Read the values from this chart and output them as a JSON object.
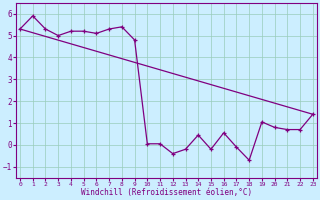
{
  "xlabel": "Windchill (Refroidissement éolien,°C)",
  "bg_color": "#cceeff",
  "line_color": "#800080",
  "xlim": [
    -0.3,
    23.3
  ],
  "ylim": [
    -1.5,
    6.5
  ],
  "yticks": [
    -1,
    0,
    1,
    2,
    3,
    4,
    5,
    6
  ],
  "xticks": [
    0,
    1,
    2,
    3,
    4,
    5,
    6,
    7,
    8,
    9,
    10,
    11,
    12,
    13,
    14,
    15,
    16,
    17,
    18,
    19,
    20,
    21,
    22,
    23
  ],
  "series1_x": [
    0,
    1,
    2,
    3,
    4,
    5,
    6,
    7,
    8,
    9,
    10,
    11,
    12,
    13,
    14,
    15,
    16,
    17,
    18,
    19,
    20,
    21,
    22,
    23
  ],
  "series1_y": [
    5.3,
    5.9,
    5.3,
    5.0,
    5.2,
    5.2,
    5.1,
    5.3,
    5.4,
    4.8,
    0.05,
    0.05,
    -0.4,
    -0.2,
    0.45,
    -0.2,
    0.55,
    -0.1,
    -0.7,
    1.05,
    0.8,
    0.7,
    0.7,
    1.4
  ],
  "series2_x": [
    0,
    23
  ],
  "series2_y": [
    5.3,
    1.4
  ],
  "grid_color": "#99ccbb",
  "marker": "+"
}
